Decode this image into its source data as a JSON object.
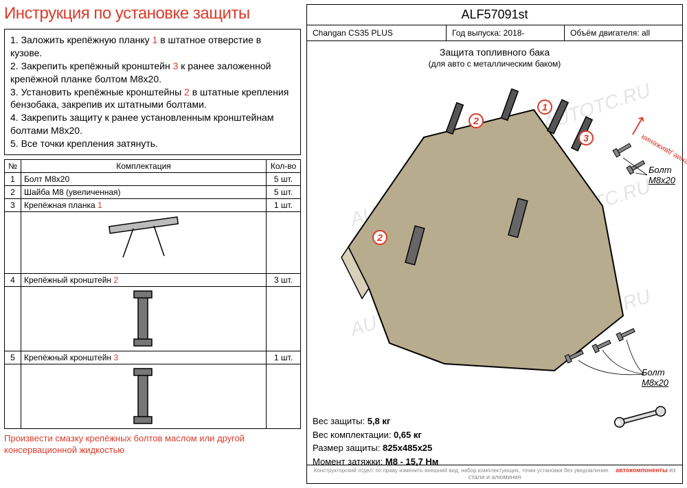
{
  "title": "Инструкция по установке защиты",
  "instructions": [
    {
      "n": "1.",
      "text": "Заложить крепёжную планку ",
      "cn": "1",
      "text2": " в штатное отверстие в кузове."
    },
    {
      "n": "2.",
      "text": "Закрепить крепёжный кронштейн ",
      "cn": "3",
      "text2": " к ранее заложенной крепёжной планке болтом М8х20."
    },
    {
      "n": "3.",
      "text": "Установить крепёжные кронштейны ",
      "cn": "2",
      "text2": " в штатные крепления бензобака, закрепив их штатными болтами."
    },
    {
      "n": "4.",
      "text": "Закрепить защиту к ранее установленным кронштейнам болтами М8х20.",
      "cn": "",
      "text2": ""
    },
    {
      "n": "5.",
      "text": "Все точки крепления затянуть.",
      "cn": "",
      "text2": ""
    }
  ],
  "parts_header": {
    "num": "№",
    "name": "Комплектация",
    "qty": "Кол-во"
  },
  "parts": [
    {
      "n": "1",
      "name": "Болт М8х20",
      "qty": "5 шт."
    },
    {
      "n": "2",
      "name": "Шайба М8 (увеличенная)",
      "qty": "5 шт."
    },
    {
      "n": "3",
      "name": "Крепёжная планка ",
      "cn": "1",
      "qty": "1 шт.",
      "img": "planka"
    },
    {
      "n": "4",
      "name": "Крепёжный кронштейн ",
      "cn": "2",
      "qty": "3 шт.",
      "img": "bracket"
    },
    {
      "n": "5",
      "name": "Крепёжный кронштейн ",
      "cn": "3",
      "qty": "1 шт.",
      "img": "bracket"
    }
  ],
  "footnote": "Произвести смазку крепёжных болтов маслом или другой консервационной жидкостью",
  "product_code": "ALF57091st",
  "meta": {
    "model_label": "Changan CS35 PLUS",
    "year_label": "Год выпуска: ",
    "year": "2018-",
    "engine_label": "Объём двигателя: ",
    "engine": "all"
  },
  "subtitle": "Защита топливного бака",
  "subtitle2": "(для авто с металлическим баком)",
  "direction_label": "Направление движения",
  "bolt_label": "Болт",
  "bolt_spec": "M8x20",
  "specs": [
    {
      "k": "Вес защиты:",
      "v": "5,8 кг"
    },
    {
      "k": "Вес комплектации:",
      "v": "0,65 кг"
    },
    {
      "k": "Размер защиты:",
      "v": "825x485x25"
    },
    {
      "k": "Момент затяжки:",
      "v": "М8 - 15,7 Нм"
    }
  ],
  "brand": "автокомпоненты",
  "brand_tag": " из стали и алюминия",
  "fine_print": "Конструкторский отдел: по праву изменить внешний вид, набор комплектующих, точки установки без уведомления.",
  "watermark": "AUTOTC.RU",
  "colors": {
    "accent": "#d93a2b",
    "plate_fill": "#b8ac8e"
  },
  "callouts": [
    "1",
    "2",
    "3",
    "2"
  ]
}
